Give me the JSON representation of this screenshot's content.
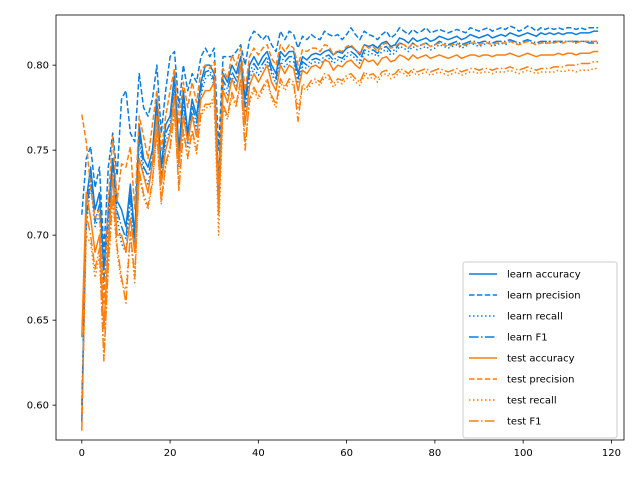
{
  "chart_data": {
    "type": "line",
    "title": "",
    "xlabel": "",
    "ylabel": "",
    "xlim": [
      -5.85,
      122.85
    ],
    "ylim": [
      0.5795,
      0.8295
    ],
    "xticks": [
      0,
      20,
      40,
      60,
      80,
      100,
      120
    ],
    "yticks": [
      0.6,
      0.65,
      0.7,
      0.75,
      0.8
    ],
    "ytick_labels": [
      "0.60",
      "0.65",
      "0.70",
      "0.75",
      "0.80"
    ],
    "grid": false,
    "legend_position": "lower-right",
    "colors": {
      "learn": "#1f77b4",
      "learn_display": "#0a7de0",
      "test": "#ff7f0e"
    },
    "x": [
      0,
      1,
      2,
      3,
      4,
      5,
      6,
      7,
      8,
      9,
      10,
      11,
      12,
      13,
      14,
      15,
      16,
      17,
      18,
      19,
      20,
      21,
      22,
      23,
      24,
      25,
      26,
      27,
      28,
      29,
      30,
      31,
      32,
      33,
      34,
      35,
      36,
      37,
      38,
      39,
      40,
      41,
      42,
      43,
      44,
      45,
      46,
      47,
      48,
      49,
      50,
      51,
      52,
      53,
      54,
      55,
      56,
      57,
      58,
      59,
      60,
      61,
      62,
      63,
      64,
      65,
      66,
      67,
      68,
      69,
      70,
      71,
      72,
      73,
      74,
      75,
      76,
      77,
      78,
      79,
      80,
      81,
      82,
      83,
      84,
      85,
      86,
      87,
      88,
      89,
      90,
      91,
      92,
      93,
      94,
      95,
      96,
      97,
      98,
      99,
      100,
      101,
      102,
      103,
      104,
      105,
      106,
      107,
      108,
      109,
      110,
      111,
      112,
      113,
      114,
      115,
      116,
      117
    ],
    "series": [
      {
        "name": "learn accuracy",
        "group": "learn",
        "dash": "solid",
        "values": [
          0.59,
          0.72,
          0.74,
          0.715,
          0.725,
          0.68,
          0.715,
          0.745,
          0.72,
          0.715,
          0.705,
          0.73,
          0.7,
          0.765,
          0.745,
          0.74,
          0.75,
          0.78,
          0.74,
          0.765,
          0.77,
          0.795,
          0.75,
          0.785,
          0.76,
          0.78,
          0.77,
          0.79,
          0.8,
          0.8,
          0.795,
          0.73,
          0.795,
          0.79,
          0.8,
          0.795,
          0.805,
          0.78,
          0.8,
          0.805,
          0.8,
          0.805,
          0.808,
          0.8,
          0.795,
          0.808,
          0.805,
          0.808,
          0.808,
          0.795,
          0.805,
          0.803,
          0.806,
          0.807,
          0.806,
          0.808,
          0.809,
          0.806,
          0.808,
          0.807,
          0.81,
          0.811,
          0.809,
          0.806,
          0.812,
          0.811,
          0.812,
          0.81,
          0.813,
          0.814,
          0.811,
          0.812,
          0.816,
          0.815,
          0.813,
          0.816,
          0.814,
          0.815,
          0.816,
          0.814,
          0.815,
          0.817,
          0.816,
          0.815,
          0.816,
          0.817,
          0.815,
          0.816,
          0.818,
          0.817,
          0.816,
          0.817,
          0.818,
          0.816,
          0.817,
          0.818,
          0.817,
          0.819,
          0.818,
          0.817,
          0.818,
          0.819,
          0.818,
          0.817,
          0.819,
          0.818,
          0.819,
          0.818,
          0.819,
          0.818,
          0.819,
          0.819,
          0.818,
          0.819,
          0.819,
          0.819,
          0.82,
          0.82
        ]
      },
      {
        "name": "learn precision",
        "group": "learn",
        "dash": "dashed",
        "values": [
          0.712,
          0.745,
          0.752,
          0.728,
          0.74,
          0.69,
          0.74,
          0.76,
          0.735,
          0.78,
          0.785,
          0.76,
          0.755,
          0.795,
          0.775,
          0.77,
          0.78,
          0.8,
          0.76,
          0.785,
          0.805,
          0.808,
          0.775,
          0.8,
          0.785,
          0.795,
          0.79,
          0.805,
          0.81,
          0.805,
          0.81,
          0.75,
          0.805,
          0.805,
          0.805,
          0.808,
          0.812,
          0.8,
          0.815,
          0.82,
          0.818,
          0.815,
          0.818,
          0.812,
          0.808,
          0.82,
          0.815,
          0.82,
          0.818,
          0.81,
          0.817,
          0.815,
          0.818,
          0.816,
          0.815,
          0.82,
          0.818,
          0.817,
          0.818,
          0.815,
          0.818,
          0.822,
          0.818,
          0.815,
          0.82,
          0.818,
          0.817,
          0.815,
          0.818,
          0.82,
          0.816,
          0.818,
          0.822,
          0.82,
          0.818,
          0.821,
          0.819,
          0.82,
          0.822,
          0.819,
          0.82,
          0.821,
          0.82,
          0.819,
          0.82,
          0.821,
          0.82,
          0.819,
          0.822,
          0.821,
          0.82,
          0.821,
          0.822,
          0.82,
          0.821,
          0.822,
          0.821,
          0.823,
          0.822,
          0.82,
          0.821,
          0.823,
          0.822,
          0.82,
          0.822,
          0.821,
          0.822,
          0.821,
          0.822,
          0.821,
          0.822,
          0.822,
          0.821,
          0.822,
          0.821,
          0.822,
          0.822,
          0.822
        ]
      },
      {
        "name": "learn recall",
        "group": "learn",
        "dash": "dotted",
        "values": [
          0.595,
          0.705,
          0.73,
          0.705,
          0.712,
          0.668,
          0.705,
          0.735,
          0.71,
          0.695,
          0.69,
          0.72,
          0.69,
          0.755,
          0.735,
          0.73,
          0.742,
          0.77,
          0.73,
          0.755,
          0.762,
          0.788,
          0.74,
          0.778,
          0.752,
          0.772,
          0.762,
          0.782,
          0.792,
          0.795,
          0.788,
          0.722,
          0.788,
          0.782,
          0.793,
          0.788,
          0.798,
          0.772,
          0.792,
          0.798,
          0.794,
          0.798,
          0.802,
          0.795,
          0.789,
          0.802,
          0.799,
          0.802,
          0.802,
          0.79,
          0.799,
          0.798,
          0.801,
          0.802,
          0.801,
          0.803,
          0.804,
          0.801,
          0.803,
          0.802,
          0.805,
          0.806,
          0.804,
          0.801,
          0.807,
          0.806,
          0.807,
          0.805,
          0.808,
          0.809,
          0.806,
          0.807,
          0.811,
          0.81,
          0.808,
          0.811,
          0.809,
          0.81,
          0.811,
          0.809,
          0.81,
          0.812,
          0.811,
          0.81,
          0.811,
          0.812,
          0.81,
          0.811,
          0.813,
          0.812,
          0.811,
          0.812,
          0.813,
          0.811,
          0.812,
          0.813,
          0.812,
          0.814,
          0.813,
          0.812,
          0.813,
          0.814,
          0.813,
          0.812,
          0.814,
          0.813,
          0.814,
          0.813,
          0.814,
          0.813,
          0.814,
          0.814,
          0.813,
          0.814,
          0.814,
          0.814,
          0.814,
          0.814
        ]
      },
      {
        "name": "learn F1",
        "group": "learn",
        "dash": "dashdot",
        "values": [
          0.6,
          0.71,
          0.735,
          0.708,
          0.718,
          0.674,
          0.71,
          0.74,
          0.714,
          0.705,
          0.698,
          0.725,
          0.695,
          0.76,
          0.74,
          0.735,
          0.746,
          0.775,
          0.735,
          0.76,
          0.766,
          0.791,
          0.745,
          0.781,
          0.756,
          0.776,
          0.766,
          0.786,
          0.796,
          0.797,
          0.791,
          0.726,
          0.791,
          0.786,
          0.796,
          0.791,
          0.801,
          0.776,
          0.796,
          0.801,
          0.797,
          0.801,
          0.805,
          0.797,
          0.792,
          0.805,
          0.802,
          0.805,
          0.805,
          0.792,
          0.802,
          0.8,
          0.803,
          0.804,
          0.803,
          0.805,
          0.806,
          0.803,
          0.805,
          0.804,
          0.807,
          0.808,
          0.806,
          0.803,
          0.809,
          0.808,
          0.809,
          0.807,
          0.81,
          0.811,
          0.808,
          0.809,
          0.813,
          0.812,
          0.81,
          0.813,
          0.811,
          0.812,
          0.813,
          0.811,
          0.812,
          0.814,
          0.813,
          0.812,
          0.813,
          0.814,
          0.812,
          0.813,
          0.814,
          0.814,
          0.813,
          0.814,
          0.814,
          0.813,
          0.814,
          0.814,
          0.814,
          0.815,
          0.814,
          0.813,
          0.814,
          0.815,
          0.814,
          0.813,
          0.814,
          0.814,
          0.814,
          0.814,
          0.814,
          0.814,
          0.814,
          0.814,
          0.814,
          0.814,
          0.814,
          0.813,
          0.813,
          0.813
        ]
      },
      {
        "name": "test accuracy",
        "group": "test",
        "dash": "solid",
        "values": [
          0.64,
          0.725,
          0.71,
          0.69,
          0.7,
          0.645,
          0.695,
          0.735,
          0.7,
          0.7,
          0.69,
          0.71,
          0.69,
          0.745,
          0.735,
          0.725,
          0.742,
          0.77,
          0.73,
          0.75,
          0.76,
          0.782,
          0.742,
          0.77,
          0.755,
          0.77,
          0.758,
          0.78,
          0.785,
          0.785,
          0.79,
          0.712,
          0.785,
          0.778,
          0.792,
          0.785,
          0.8,
          0.765,
          0.788,
          0.795,
          0.79,
          0.795,
          0.8,
          0.79,
          0.785,
          0.8,
          0.795,
          0.8,
          0.798,
          0.785,
          0.797,
          0.795,
          0.799,
          0.8,
          0.798,
          0.803,
          0.802,
          0.797,
          0.8,
          0.799,
          0.802,
          0.803,
          0.8,
          0.798,
          0.804,
          0.802,
          0.803,
          0.8,
          0.804,
          0.805,
          0.802,
          0.803,
          0.806,
          0.805,
          0.803,
          0.806,
          0.804,
          0.805,
          0.806,
          0.804,
          0.805,
          0.806,
          0.805,
          0.804,
          0.805,
          0.806,
          0.804,
          0.805,
          0.806,
          0.806,
          0.805,
          0.806,
          0.806,
          0.805,
          0.806,
          0.806,
          0.806,
          0.807,
          0.806,
          0.805,
          0.806,
          0.807,
          0.806,
          0.805,
          0.806,
          0.806,
          0.806,
          0.806,
          0.807,
          0.806,
          0.807,
          0.807,
          0.806,
          0.807,
          0.807,
          0.807,
          0.808,
          0.808
        ]
      },
      {
        "name": "test precision",
        "group": "test",
        "dash": "dashed",
        "values": [
          0.771,
          0.755,
          0.728,
          0.71,
          0.715,
          0.66,
          0.72,
          0.758,
          0.72,
          0.742,
          0.74,
          0.752,
          0.715,
          0.77,
          0.758,
          0.745,
          0.765,
          0.785,
          0.75,
          0.77,
          0.785,
          0.798,
          0.765,
          0.79,
          0.775,
          0.79,
          0.778,
          0.797,
          0.8,
          0.798,
          0.802,
          0.73,
          0.798,
          0.792,
          0.806,
          0.8,
          0.81,
          0.785,
          0.805,
          0.81,
          0.806,
          0.81,
          0.812,
          0.804,
          0.8,
          0.812,
          0.808,
          0.812,
          0.81,
          0.8,
          0.809,
          0.808,
          0.81,
          0.81,
          0.808,
          0.812,
          0.811,
          0.806,
          0.809,
          0.808,
          0.811,
          0.812,
          0.809,
          0.807,
          0.812,
          0.81,
          0.811,
          0.808,
          0.812,
          0.813,
          0.81,
          0.811,
          0.813,
          0.812,
          0.81,
          0.813,
          0.811,
          0.812,
          0.813,
          0.811,
          0.812,
          0.813,
          0.812,
          0.811,
          0.812,
          0.813,
          0.811,
          0.812,
          0.813,
          0.813,
          0.812,
          0.813,
          0.813,
          0.812,
          0.813,
          0.813,
          0.813,
          0.814,
          0.813,
          0.812,
          0.813,
          0.814,
          0.813,
          0.812,
          0.813,
          0.813,
          0.813,
          0.813,
          0.814,
          0.813,
          0.814,
          0.814,
          0.813,
          0.814,
          0.814,
          0.814,
          0.814,
          0.814
        ]
      },
      {
        "name": "test recall",
        "group": "test",
        "dash": "dotted",
        "values": [
          0.59,
          0.7,
          0.695,
          0.675,
          0.688,
          0.628,
          0.68,
          0.72,
          0.69,
          0.672,
          0.668,
          0.7,
          0.672,
          0.735,
          0.722,
          0.715,
          0.73,
          0.76,
          0.718,
          0.74,
          0.75,
          0.772,
          0.73,
          0.76,
          0.745,
          0.76,
          0.748,
          0.77,
          0.775,
          0.775,
          0.78,
          0.7,
          0.775,
          0.768,
          0.782,
          0.775,
          0.79,
          0.755,
          0.778,
          0.785,
          0.78,
          0.785,
          0.79,
          0.78,
          0.775,
          0.79,
          0.785,
          0.79,
          0.788,
          0.775,
          0.787,
          0.785,
          0.789,
          0.79,
          0.788,
          0.793,
          0.792,
          0.787,
          0.79,
          0.789,
          0.792,
          0.793,
          0.79,
          0.788,
          0.794,
          0.792,
          0.793,
          0.79,
          0.794,
          0.795,
          0.792,
          0.793,
          0.796,
          0.795,
          0.793,
          0.796,
          0.794,
          0.795,
          0.796,
          0.794,
          0.795,
          0.796,
          0.795,
          0.794,
          0.795,
          0.796,
          0.794,
          0.795,
          0.796,
          0.796,
          0.795,
          0.796,
          0.796,
          0.795,
          0.796,
          0.796,
          0.796,
          0.797,
          0.796,
          0.795,
          0.796,
          0.797,
          0.796,
          0.795,
          0.796,
          0.796,
          0.796,
          0.796,
          0.797,
          0.796,
          0.797,
          0.797,
          0.796,
          0.797,
          0.797,
          0.797,
          0.798,
          0.798
        ]
      },
      {
        "name": "test F1",
        "group": "test",
        "dash": "dashdot",
        "values": [
          0.585,
          0.712,
          0.7,
          0.68,
          0.692,
          0.626,
          0.684,
          0.724,
          0.693,
          0.675,
          0.66,
          0.702,
          0.675,
          0.738,
          0.724,
          0.717,
          0.732,
          0.762,
          0.72,
          0.742,
          0.752,
          0.774,
          0.726,
          0.762,
          0.746,
          0.762,
          0.75,
          0.772,
          0.777,
          0.777,
          0.782,
          0.715,
          0.777,
          0.77,
          0.784,
          0.777,
          0.792,
          0.75,
          0.78,
          0.787,
          0.782,
          0.787,
          0.792,
          0.782,
          0.777,
          0.792,
          0.787,
          0.792,
          0.79,
          0.767,
          0.789,
          0.787,
          0.791,
          0.792,
          0.79,
          0.795,
          0.794,
          0.789,
          0.792,
          0.791,
          0.794,
          0.795,
          0.792,
          0.79,
          0.796,
          0.794,
          0.795,
          0.792,
          0.796,
          0.797,
          0.794,
          0.795,
          0.798,
          0.797,
          0.795,
          0.798,
          0.796,
          0.797,
          0.798,
          0.796,
          0.797,
          0.798,
          0.797,
          0.796,
          0.797,
          0.798,
          0.796,
          0.797,
          0.798,
          0.798,
          0.797,
          0.798,
          0.798,
          0.797,
          0.798,
          0.798,
          0.798,
          0.799,
          0.798,
          0.797,
          0.798,
          0.799,
          0.798,
          0.797,
          0.798,
          0.798,
          0.798,
          0.799,
          0.799,
          0.799,
          0.8,
          0.8,
          0.8,
          0.801,
          0.801,
          0.801,
          0.802,
          0.802
        ]
      }
    ]
  }
}
